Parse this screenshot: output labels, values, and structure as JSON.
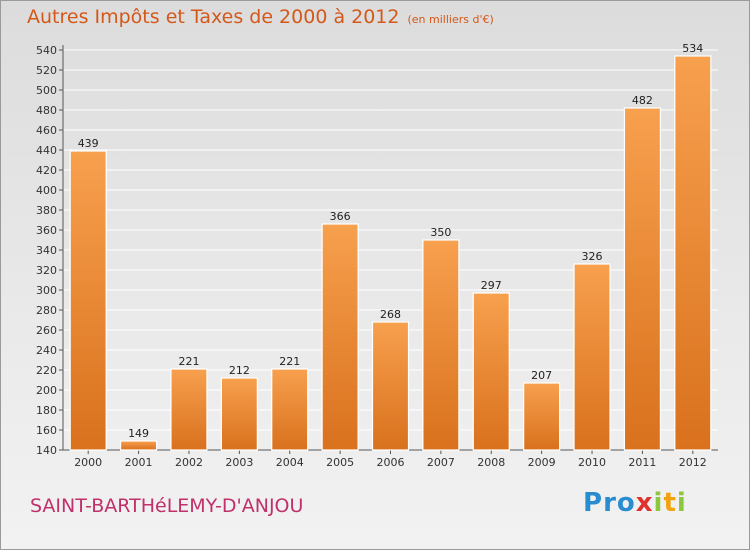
{
  "header": {
    "title": "Autres Impôts et Taxes de 2000 à 2012",
    "subtitle": "(en milliers d'€)"
  },
  "footer": {
    "commune": "SAINT-BARTHéLEMY-D'ANJOU",
    "logo": {
      "letters": [
        "P",
        "r",
        "o",
        "x",
        "i",
        "t",
        "i"
      ],
      "colors": [
        "#2a8cd0",
        "#2a8cd0",
        "#2a8cd0",
        "#e0312c",
        "#8dc63f",
        "#f2a20c",
        "#8dc63f"
      ]
    }
  },
  "colors": {
    "bar_light": "#f7a04e",
    "bar_dark": "#d9711d",
    "title": "#d4581a",
    "commune": "#c0306a"
  },
  "chart_data": {
    "type": "bar",
    "title": "Autres Impôts et Taxes de 2000 à 2012",
    "subtitle": "(en milliers d'€)",
    "categories": [
      "2000",
      "2001",
      "2002",
      "2003",
      "2004",
      "2005",
      "2006",
      "2007",
      "2008",
      "2009",
      "2010",
      "2011",
      "2012"
    ],
    "values": [
      439,
      149,
      221,
      212,
      221,
      366,
      268,
      350,
      297,
      207,
      326,
      482,
      534
    ],
    "ylim": [
      140,
      540
    ],
    "yticks": [
      140,
      160,
      180,
      200,
      220,
      240,
      260,
      280,
      300,
      320,
      340,
      360,
      380,
      400,
      420,
      440,
      460,
      480,
      500,
      520,
      540
    ],
    "grid": true,
    "xlabel": "",
    "ylabel": ""
  }
}
